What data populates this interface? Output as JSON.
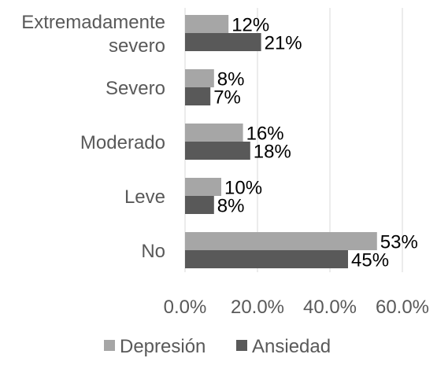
{
  "chart_data": {
    "type": "bar",
    "orientation": "horizontal",
    "categories": [
      [
        "Extremadamente",
        "severo"
      ],
      [
        "Severo"
      ],
      [
        "Moderado"
      ],
      [
        "Leve"
      ],
      [
        "No"
      ]
    ],
    "series": [
      {
        "name": "Depresión",
        "color": "#a6a6a6",
        "values": [
          12,
          8,
          16,
          10,
          53
        ],
        "labels": [
          "12%",
          "8%",
          "16%",
          "10%",
          "53%"
        ]
      },
      {
        "name": "Ansiedad",
        "color": "#595959",
        "values": [
          21,
          7,
          18,
          8,
          45
        ],
        "labels": [
          "21%",
          "7%",
          "18%",
          "8%",
          "45%"
        ]
      }
    ],
    "xlim": [
      0,
      60
    ],
    "xticks": [
      0,
      20,
      40,
      60
    ],
    "xtick_labels": [
      "0.0%",
      "20.0%",
      "40.0%",
      "60.0%"
    ],
    "grid": "vertical",
    "legend": "bottom"
  }
}
